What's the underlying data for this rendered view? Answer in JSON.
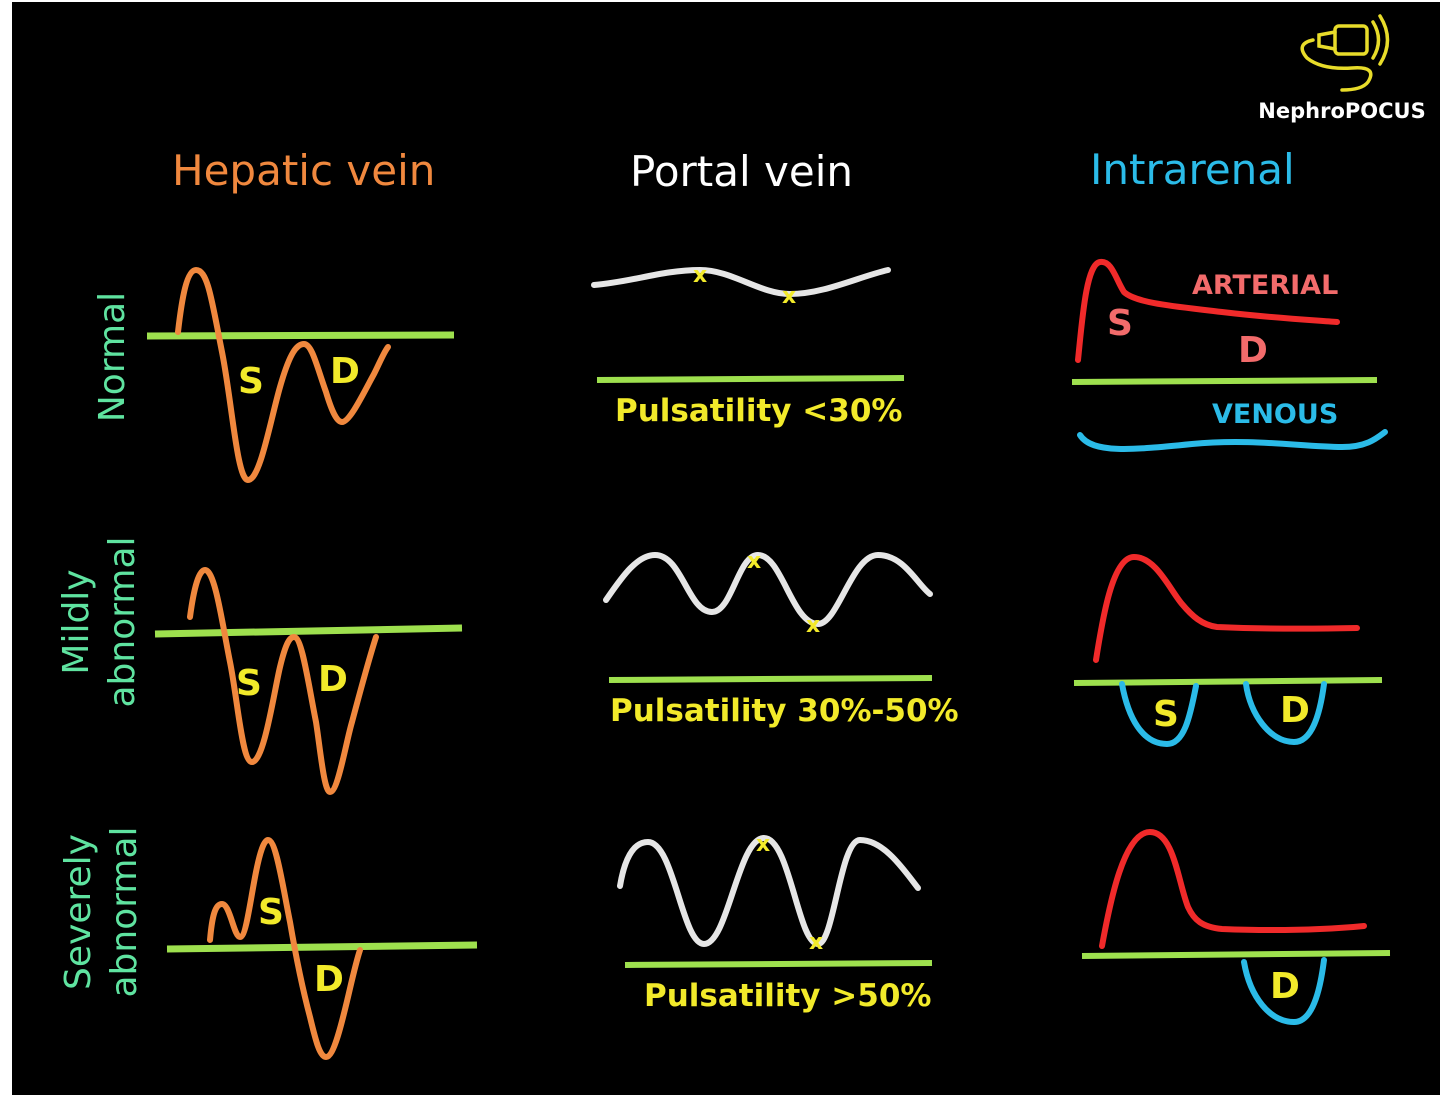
{
  "logo": {
    "text": "NephroPOCUS",
    "icon": "ultrasound-probe-icon",
    "color": "#e8dc2a"
  },
  "columns": {
    "hepatic": {
      "title": "Hepatic vein",
      "color": "#f0883e"
    },
    "portal": {
      "title": "Portal vein",
      "color": "#ffffff"
    },
    "intrarenal": {
      "title": "Intrarenal",
      "color": "#2bbbe8"
    }
  },
  "rows": [
    {
      "label_lines": [
        "Normal"
      ]
    },
    {
      "label_lines": [
        "Mildly",
        "abnormal"
      ]
    },
    {
      "label_lines": [
        "Severely",
        "abnormal"
      ]
    }
  ],
  "row_label_color": "#5fe3a0",
  "baseline_color": "#9ee04e",
  "hepatic_waves": [
    {
      "labels": [
        "S",
        "D"
      ]
    },
    {
      "labels": [
        "S",
        "D"
      ]
    },
    {
      "labels": [
        "S",
        "D"
      ]
    }
  ],
  "portal_waves": [
    {
      "pulsatility": "Pulsatility <30%"
    },
    {
      "pulsatility": "Pulsatility 30%-50%"
    },
    {
      "pulsatility": "Pulsatility >50%"
    }
  ],
  "intrarenal_waves": [
    {
      "arterial_label": "ARTERIAL",
      "venous_label": "VENOUS",
      "labels": [
        "S",
        "D"
      ]
    },
    {
      "labels": [
        "S",
        "D"
      ]
    },
    {
      "labels": [
        "D"
      ]
    }
  ],
  "colors": {
    "arterial": "#f02a2a",
    "venous": "#2bbbe8",
    "label": "#f2ea2a",
    "portal_line": "#e6e6e6"
  }
}
